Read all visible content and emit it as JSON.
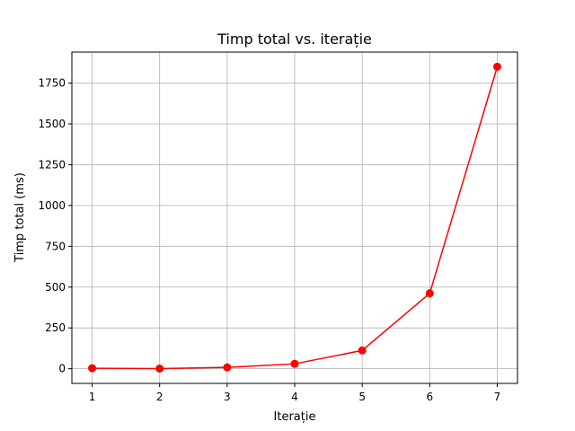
{
  "chart_data": {
    "type": "line",
    "title": "Timp total vs. iterație",
    "xlabel": "Iterație",
    "ylabel": "Timp total (ms)",
    "x": [
      1,
      2,
      3,
      4,
      5,
      6,
      7
    ],
    "series": [
      {
        "values": [
          3,
          1,
          8,
          30,
          112,
          462,
          1850
        ]
      }
    ],
    "xticks": [
      1,
      2,
      3,
      4,
      5,
      6,
      7
    ],
    "yticks": [
      0,
      250,
      500,
      750,
      1000,
      1250,
      1500,
      1750
    ],
    "xlim": [
      0.7,
      7.3
    ],
    "ylim": [
      -90,
      1940
    ],
    "grid": true,
    "line_color": "#ff0000",
    "marker": "circle"
  }
}
